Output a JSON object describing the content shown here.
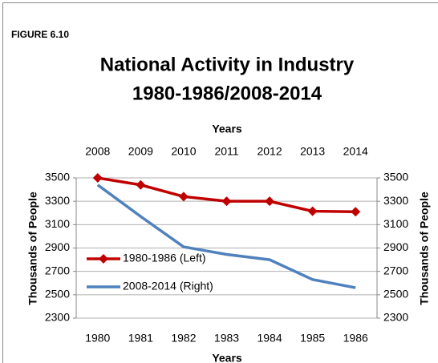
{
  "label": "FIGURE 6.10",
  "chart_data": {
    "type": "line",
    "title": [
      "National Activity in Industry",
      "1980-1986/2008-2014"
    ],
    "x_label": "Years",
    "x2_label": "Years",
    "y_label": "Thousands of People",
    "y2_label": "Thousands of People",
    "categories": [
      "1980",
      "1981",
      "1982",
      "1983",
      "1984",
      "1985",
      "1986"
    ],
    "top_categories": [
      "2008",
      "2009",
      "2010",
      "2011",
      "2012",
      "2013",
      "2014"
    ],
    "ylim": [
      2300,
      3500
    ],
    "yticks": [
      2300,
      2500,
      2700,
      2900,
      3100,
      3300,
      3500
    ],
    "y2lim": [
      2300,
      3500
    ],
    "y2ticks": [
      2300,
      2500,
      2700,
      2900,
      3100,
      3300,
      3500
    ],
    "grid": true,
    "legend": "left",
    "series": [
      {
        "name": "1980-1986 (Left)",
        "color": "#c00000",
        "marker": "diamond",
        "values": [
          3500,
          3440,
          3340,
          3300,
          3300,
          3215,
          3210
        ]
      },
      {
        "name": "2008-2014 (Right)",
        "color": "#4f81bd",
        "axis": "y2",
        "values": [
          3440,
          3170,
          2910,
          2845,
          2800,
          2630,
          2560
        ]
      }
    ]
  }
}
